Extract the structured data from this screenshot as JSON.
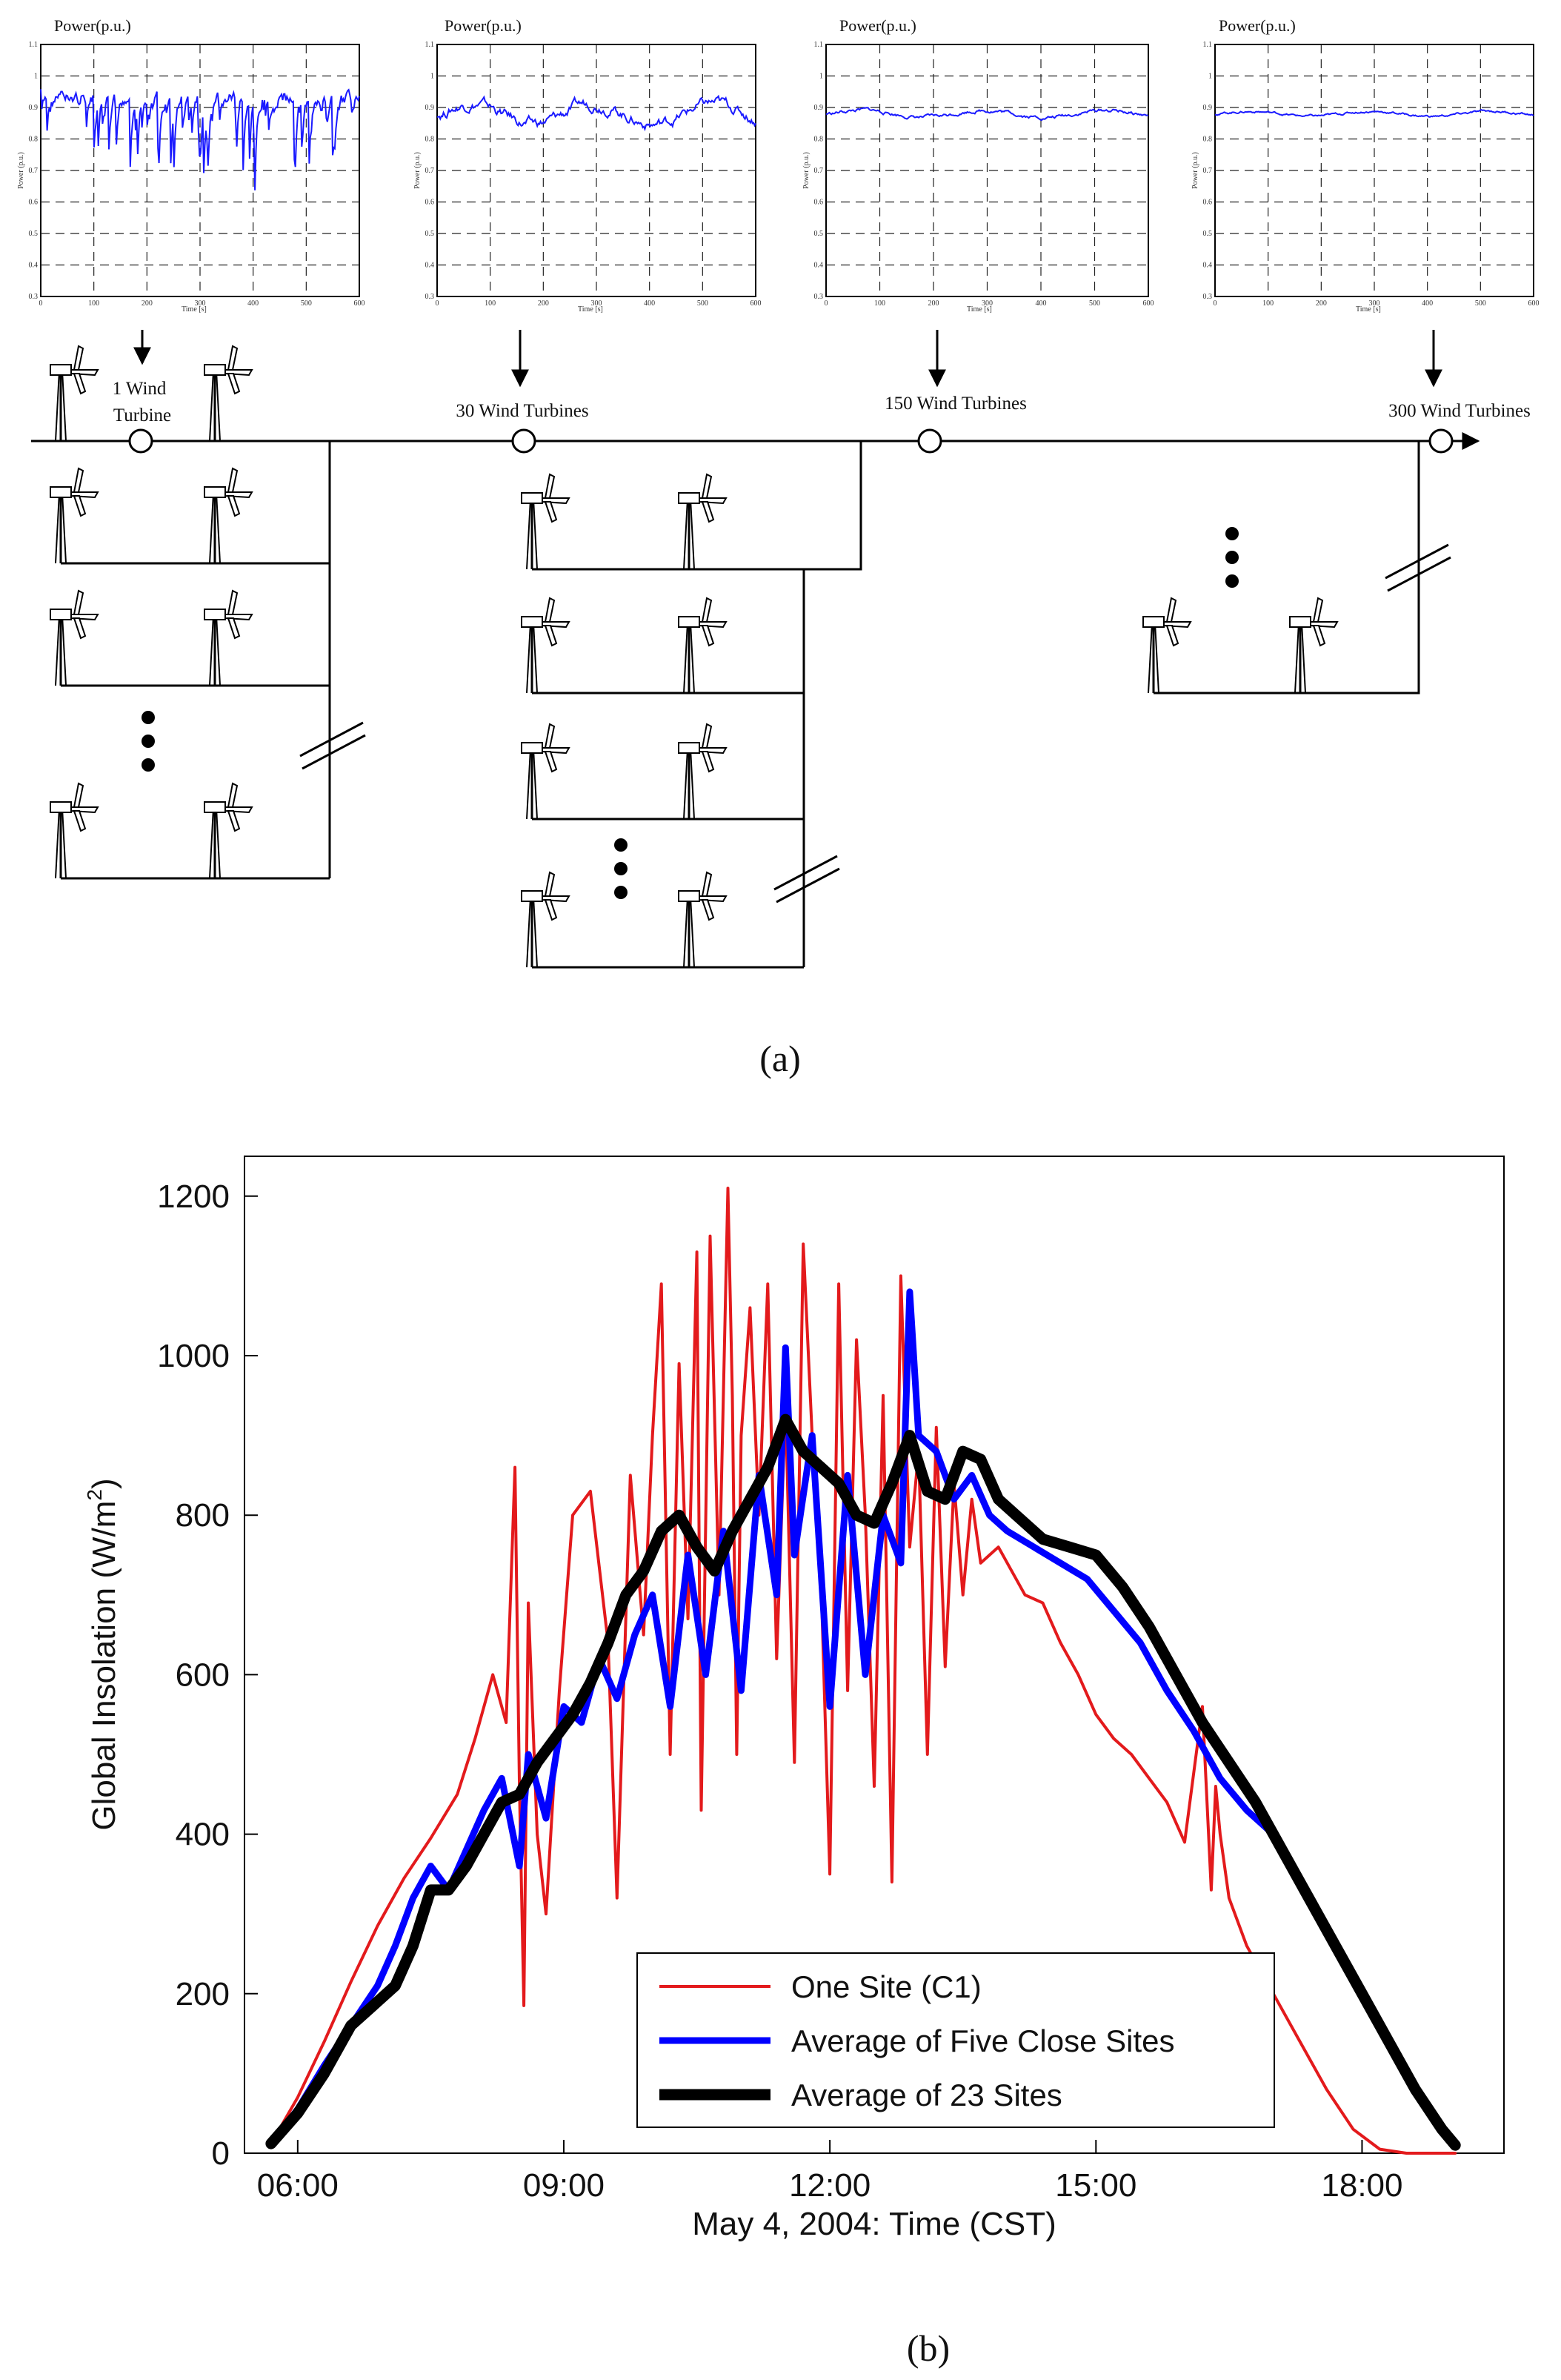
{
  "panel_a": {
    "caption": "(a)",
    "charts": [
      {
        "title": "Power(p.u.)",
        "x_label": "Time [s]",
        "x_ticks": [
          "0",
          "100",
          "200",
          "300",
          "400",
          "500",
          "600"
        ],
        "y_label": "Power (p.u.)",
        "y_ticks": [
          "0.3",
          "0.4",
          "0.5",
          "0.6",
          "0.7",
          "0.8",
          "0.9",
          "1",
          "1.1"
        ],
        "variability": "high"
      },
      {
        "title": "Power(p.u.)",
        "x_label": "Time [s]",
        "x_ticks": [
          "0",
          "100",
          "200",
          "300",
          "400",
          "500",
          "600"
        ],
        "y_label": "Power (p.u.)",
        "y_ticks": [
          "0.3",
          "0.4",
          "0.5",
          "0.6",
          "0.7",
          "0.8",
          "0.9",
          "1",
          "1.1"
        ],
        "variability": "medium"
      },
      {
        "title": "Power(p.u.)",
        "x_label": "Time [s]",
        "x_ticks": [
          "0",
          "100",
          "200",
          "300",
          "400",
          "500",
          "600"
        ],
        "y_label": "Power (p.u.)",
        "y_ticks": [
          "0.3",
          "0.4",
          "0.5",
          "0.6",
          "0.7",
          "0.8",
          "0.9",
          "1",
          "1.1"
        ],
        "variability": "low"
      },
      {
        "title": "Power(p.u.)",
        "x_label": "Time [s]",
        "x_ticks": [
          "0",
          "100",
          "200",
          "300",
          "400",
          "500",
          "600"
        ],
        "y_label": "Power (p.u.)",
        "y_ticks": [
          "0.3",
          "0.4",
          "0.5",
          "0.6",
          "0.7",
          "0.8",
          "0.9",
          "1",
          "1.1"
        ],
        "variability": "very-low"
      }
    ],
    "stations": [
      {
        "line1": "1 Wind",
        "line2": "Turbine"
      },
      {
        "line1": "30 Wind Turbines",
        "line2": ""
      },
      {
        "line1": "150 Wind Turbines",
        "line2": ""
      },
      {
        "line1": "300 Wind Turbines",
        "line2": ""
      }
    ]
  },
  "panel_b": {
    "caption": "(b)",
    "chart_data": {
      "type": "line",
      "title": "",
      "xlabel": "May 4, 2004: Time (CST)",
      "ylabel": "Global Insolation (W/m2)",
      "ylabel_main": "Global Insolation (W/m",
      "ylabel_sup": "2",
      "ylabel_end": ")",
      "xlim": [
        5.4,
        19.6
      ],
      "ylim": [
        0,
        1250
      ],
      "x_ticks": [
        6,
        9,
        12,
        15,
        18
      ],
      "x_tick_labels": [
        "06:00",
        "09:00",
        "12:00",
        "15:00",
        "18:00"
      ],
      "y_ticks": [
        0,
        200,
        400,
        600,
        800,
        1000,
        1200
      ],
      "y_tick_labels": [
        "0",
        "200",
        "400",
        "600",
        "800",
        "1000",
        "1200"
      ],
      "legend_position": "bottom-center",
      "series": [
        {
          "name": "One Site (C1)",
          "color": "#e31a1c",
          "width": 4,
          "x": [
            5.7,
            6,
            6.3,
            6.6,
            6.9,
            7.2,
            7.5,
            7.8,
            8,
            8.2,
            8.35,
            8.45,
            8.5,
            8.55,
            8.6,
            8.7,
            8.8,
            8.95,
            9.1,
            9.3,
            9.5,
            9.6,
            9.75,
            9.9,
            10,
            10.1,
            10.2,
            10.3,
            10.4,
            10.5,
            10.55,
            10.65,
            10.75,
            10.85,
            10.9,
            10.95,
            11,
            11.1,
            11.2,
            11.3,
            11.4,
            11.5,
            11.6,
            11.7,
            11.8,
            11.9,
            12,
            12.1,
            12.2,
            12.3,
            12.4,
            12.5,
            12.6,
            12.7,
            12.8,
            12.9,
            13,
            13.1,
            13.2,
            13.3,
            13.4,
            13.5,
            13.6,
            13.7,
            13.8,
            13.9,
            14,
            14.2,
            14.4,
            14.6,
            14.8,
            15,
            15.2,
            15.4,
            15.6,
            15.8,
            16,
            16.2,
            16.3,
            16.35,
            16.4,
            16.5,
            16.7,
            17,
            17.3,
            17.6,
            17.9,
            18.2,
            18.5,
            18.8,
            19.05
          ],
          "y": [
            12,
            70,
            140,
            215,
            285,
            345,
            395,
            450,
            520,
            600,
            540,
            860,
            460,
            185,
            690,
            400,
            300,
            580,
            800,
            830,
            640,
            320,
            850,
            650,
            900,
            1090,
            500,
            990,
            670,
            1130,
            430,
            1150,
            700,
            1210,
            950,
            500,
            900,
            1060,
            800,
            1090,
            620,
            940,
            490,
            1140,
            900,
            720,
            350,
            1090,
            580,
            1020,
            800,
            460,
            950,
            340,
            1100,
            760,
            880,
            500,
            910,
            610,
            840,
            700,
            820,
            740,
            750,
            760,
            740,
            700,
            690,
            640,
            600,
            550,
            520,
            500,
            470,
            440,
            390,
            560,
            330,
            460,
            400,
            320,
            260,
            200,
            140,
            80,
            30,
            5,
            0,
            0,
            0
          ]
        },
        {
          "name": "Average of Five Close Sites",
          "color": "#0000ff",
          "width": 9,
          "x": [
            5.7,
            6,
            6.3,
            6.6,
            6.9,
            7.1,
            7.3,
            7.5,
            7.7,
            7.9,
            8.1,
            8.3,
            8.5,
            8.6,
            8.8,
            9,
            9.2,
            9.4,
            9.6,
            9.8,
            10,
            10.2,
            10.4,
            10.6,
            10.8,
            11,
            11.2,
            11.4,
            11.5,
            11.6,
            11.8,
            12,
            12.2,
            12.4,
            12.6,
            12.8,
            12.9,
            13,
            13.2,
            13.4,
            13.6,
            13.8,
            14,
            14.3,
            14.6,
            14.9,
            15.2,
            15.5,
            15.8,
            16.1,
            16.4,
            16.7,
            17,
            17.3,
            17.6,
            17.9,
            18.2,
            18.5,
            18.8,
            19.05
          ],
          "y": [
            12,
            55,
            110,
            160,
            210,
            260,
            320,
            360,
            330,
            380,
            430,
            470,
            360,
            500,
            420,
            560,
            540,
            620,
            570,
            650,
            700,
            560,
            750,
            600,
            780,
            580,
            850,
            700,
            1010,
            750,
            900,
            560,
            850,
            600,
            800,
            740,
            1080,
            900,
            880,
            820,
            850,
            800,
            780,
            760,
            740,
            720,
            680,
            640,
            580,
            530,
            470,
            430,
            400,
            340,
            280,
            220,
            160,
            100,
            50,
            10
          ]
        },
        {
          "name": "Average of 23 Sites",
          "color": "#000000",
          "width": 15,
          "x": [
            5.7,
            6,
            6.3,
            6.6,
            6.9,
            7.1,
            7.3,
            7.5,
            7.7,
            7.9,
            8.1,
            8.3,
            8.5,
            8.7,
            8.9,
            9.1,
            9.3,
            9.5,
            9.7,
            9.9,
            10.1,
            10.3,
            10.5,
            10.7,
            10.9,
            11.1,
            11.3,
            11.5,
            11.7,
            11.9,
            12.1,
            12.3,
            12.5,
            12.7,
            12.9,
            13.1,
            13.3,
            13.5,
            13.7,
            13.9,
            14.1,
            14.4,
            14.7,
            15,
            15.3,
            15.6,
            15.9,
            16.2,
            16.5,
            16.8,
            17.1,
            17.4,
            17.7,
            18,
            18.3,
            18.6,
            18.9,
            19.05
          ],
          "y": [
            12,
            50,
            100,
            160,
            190,
            210,
            260,
            330,
            330,
            360,
            400,
            440,
            450,
            490,
            520,
            550,
            590,
            640,
            700,
            730,
            780,
            800,
            760,
            730,
            780,
            820,
            860,
            920,
            880,
            860,
            840,
            800,
            790,
            840,
            900,
            830,
            820,
            880,
            870,
            820,
            800,
            770,
            760,
            750,
            710,
            660,
            600,
            540,
            490,
            440,
            380,
            320,
            260,
            200,
            140,
            80,
            30,
            10
          ]
        }
      ]
    }
  }
}
